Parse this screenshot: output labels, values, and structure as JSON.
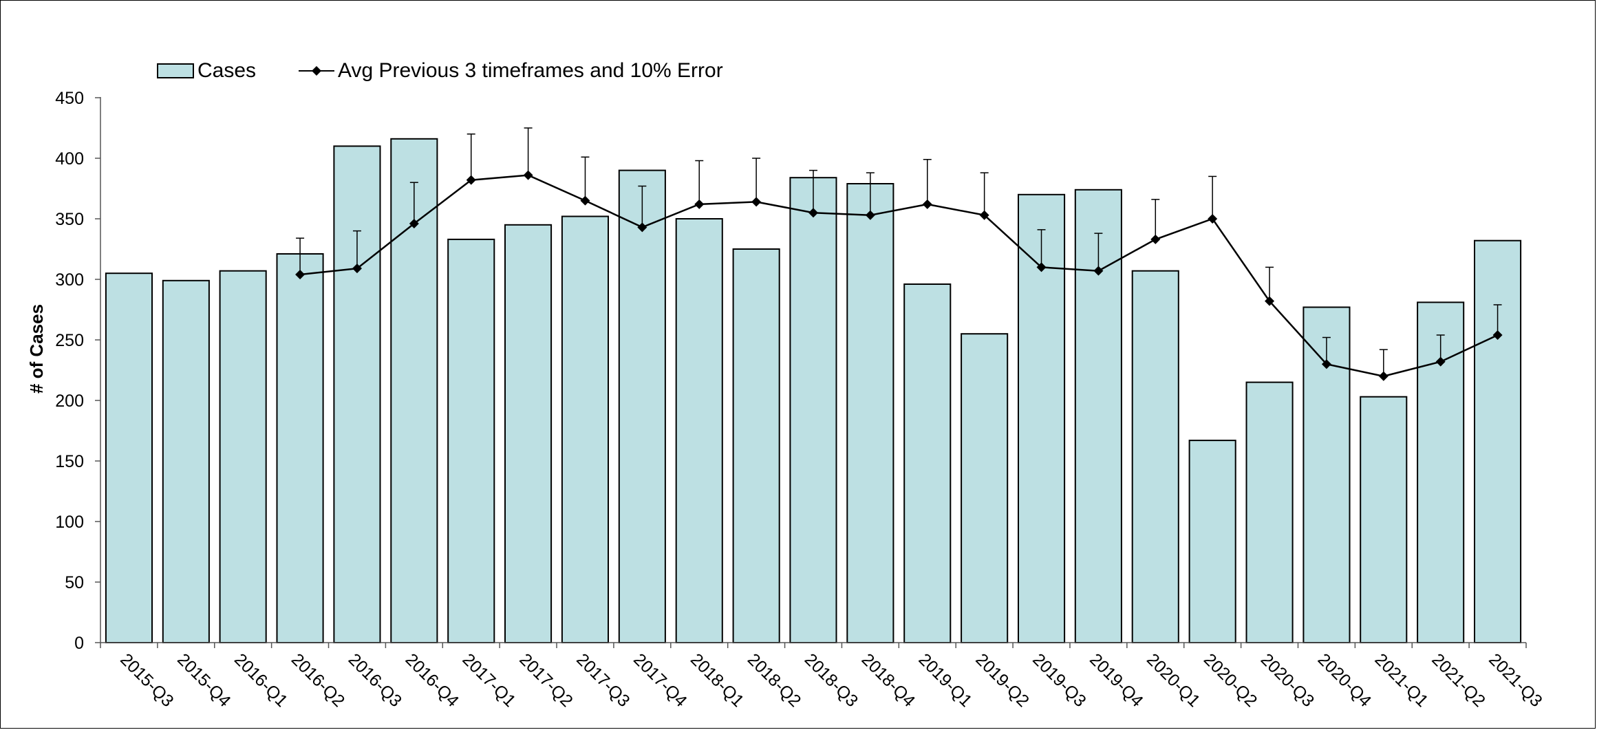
{
  "chart_data": {
    "type": "bar",
    "title": "",
    "xlabel": "",
    "ylabel": "# of Cases",
    "ylim": [
      0,
      450
    ],
    "yticks": [
      0,
      50,
      100,
      150,
      200,
      250,
      300,
      350,
      400,
      450
    ],
    "grid": false,
    "legend_position": "top-left",
    "categories": [
      "2015-Q3",
      "2015-Q4",
      "2016-Q1",
      "2016-Q2",
      "2016-Q3",
      "2016-Q4",
      "2017-Q1",
      "2017-Q2",
      "2017-Q3",
      "2017-Q4",
      "2018-Q1",
      "2018-Q2",
      "2018-Q3",
      "2018-Q4",
      "2019-Q1",
      "2019-Q2",
      "2019-Q3",
      "2019-Q4",
      "2020-Q1",
      "2020-Q2",
      "2020-Q3",
      "2020-Q4",
      "2021-Q1",
      "2021-Q2",
      "2021-Q3"
    ],
    "series": [
      {
        "name": "Cases",
        "type": "bar",
        "color": "#bde0e3",
        "values": [
          305,
          299,
          307,
          321,
          410,
          416,
          333,
          345,
          352,
          390,
          350,
          325,
          384,
          379,
          296,
          255,
          370,
          374,
          307,
          167,
          215,
          277,
          203,
          281,
          332
        ]
      },
      {
        "name": "Avg Previous 3 timeframes and 10% Error",
        "type": "line",
        "color": "#000000",
        "marker": "diamond",
        "error_bars": "+10%",
        "values": [
          null,
          null,
          null,
          304,
          309,
          346,
          382,
          386,
          365,
          343,
          362,
          364,
          355,
          353,
          362,
          353,
          310,
          307,
          333,
          350,
          282,
          230,
          220,
          232,
          254
        ],
        "error_upper": [
          null,
          null,
          null,
          334,
          340,
          380,
          420,
          425,
          401,
          377,
          398,
          400,
          390,
          388,
          399,
          388,
          341,
          338,
          366,
          385,
          310,
          252,
          242,
          254,
          279
        ]
      }
    ]
  }
}
